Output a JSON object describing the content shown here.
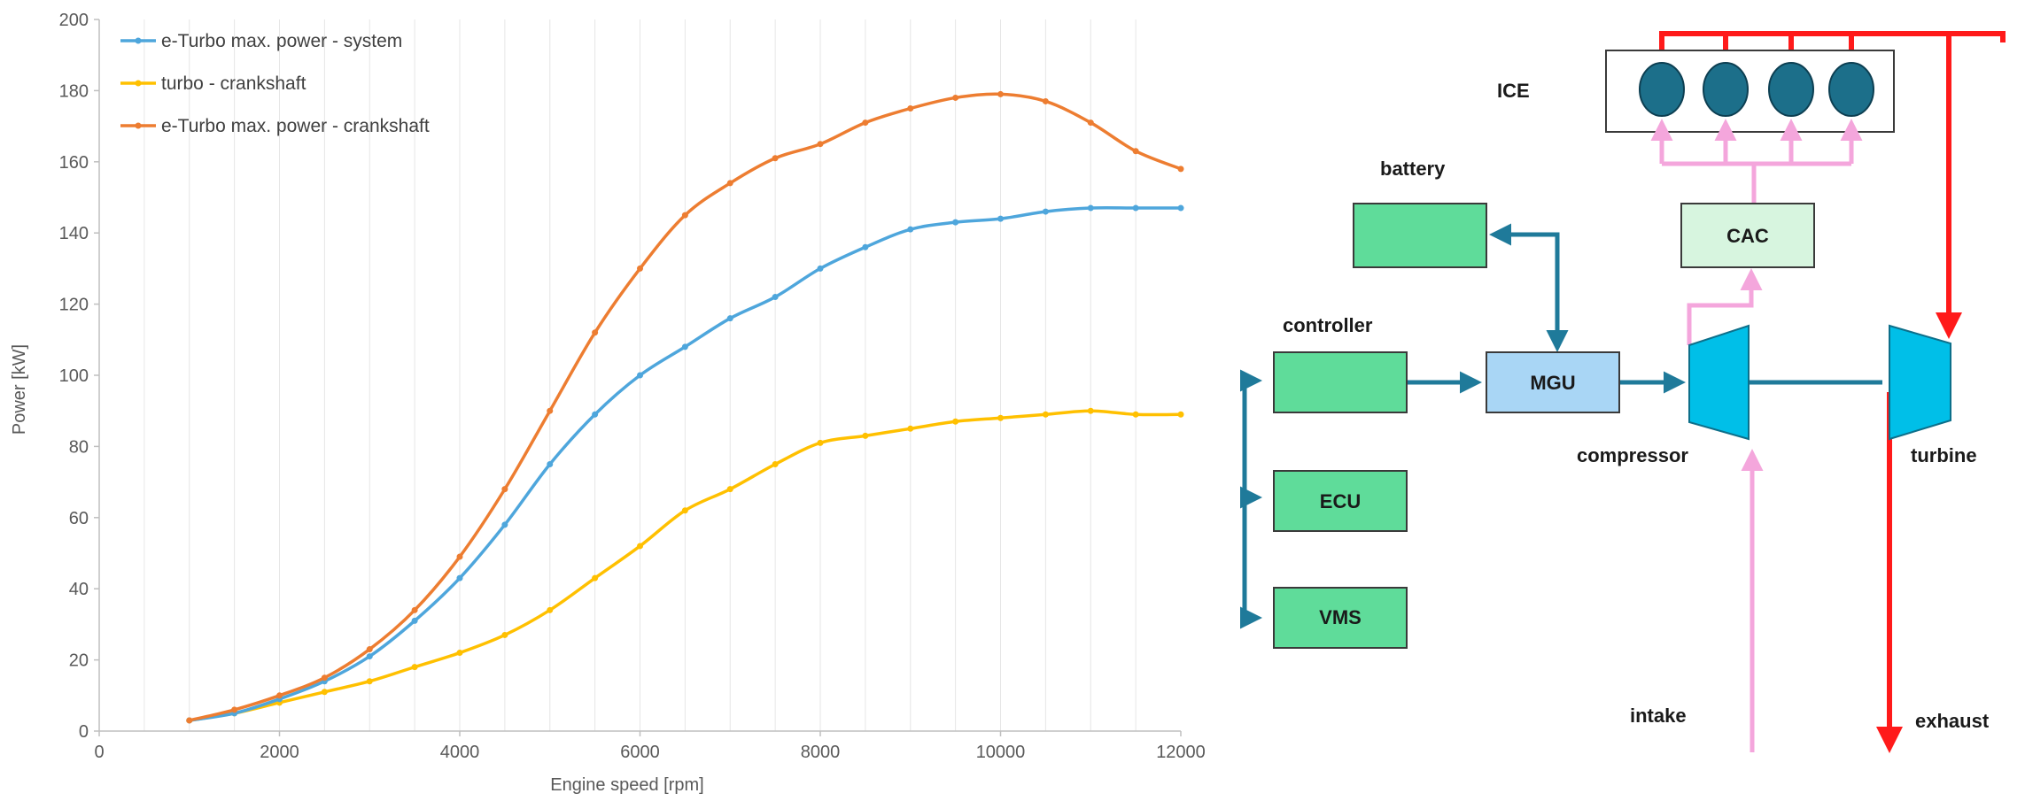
{
  "chart_data": {
    "type": "line",
    "title": "",
    "xlabel": "Engine speed [rpm]",
    "ylabel": "Power [kW]",
    "xlim": [
      0,
      12000
    ],
    "ylim": [
      0,
      200
    ],
    "xticks": [
      0,
      2000,
      4000,
      6000,
      8000,
      10000,
      12000
    ],
    "yticks": [
      0,
      20,
      40,
      60,
      80,
      100,
      120,
      140,
      160,
      180,
      200
    ],
    "grid": "vertical minor",
    "legend_position": "top-left",
    "x": [
      1000,
      1500,
      2000,
      2500,
      3000,
      3500,
      4000,
      4500,
      5000,
      5500,
      6000,
      6500,
      7000,
      7500,
      8000,
      8500,
      9000,
      9500,
      10000,
      10500,
      11000,
      11500,
      12000
    ],
    "series": [
      {
        "name": "e-Turbo max. power - system",
        "color": "#4ea6dc",
        "values": [
          3,
          5,
          9,
          14,
          21,
          31,
          43,
          58,
          75,
          89,
          100,
          108,
          116,
          122,
          130,
          136,
          141,
          143,
          144,
          146,
          147,
          147,
          147
        ]
      },
      {
        "name": "turbo - crankshaft",
        "color": "#ffc000",
        "values": [
          3,
          5,
          8,
          11,
          14,
          18,
          22,
          27,
          34,
          43,
          52,
          62,
          68,
          75,
          81,
          83,
          85,
          87,
          88,
          89,
          90,
          89,
          89
        ]
      },
      {
        "name": "e-Turbo max. power - crankshaft",
        "color": "#ed7d31",
        "values": [
          3,
          6,
          10,
          15,
          23,
          34,
          49,
          68,
          90,
          112,
          130,
          145,
          154,
          161,
          165,
          171,
          175,
          178,
          179,
          177,
          171,
          163,
          158
        ]
      }
    ]
  },
  "diagram": {
    "labels": {
      "ice": "ICE",
      "battery": "battery",
      "controller": "controller",
      "ecu": "ECU",
      "vms": "VMS",
      "mgu": "MGU",
      "cac": "CAC",
      "compressor": "compressor",
      "turbine": "turbine",
      "intake": "intake",
      "exhaust": "exhaust"
    },
    "colors": {
      "electric": "#1f7a9a",
      "exhaust": "#ff1a1a",
      "intake": "#f4a6dc",
      "block_green": "#5fdc9a",
      "block_light_green": "#d7f5df",
      "mgu": "#a9d6f5",
      "turbo": "#00bfe8",
      "cylinder": "#1c6f8a"
    }
  }
}
